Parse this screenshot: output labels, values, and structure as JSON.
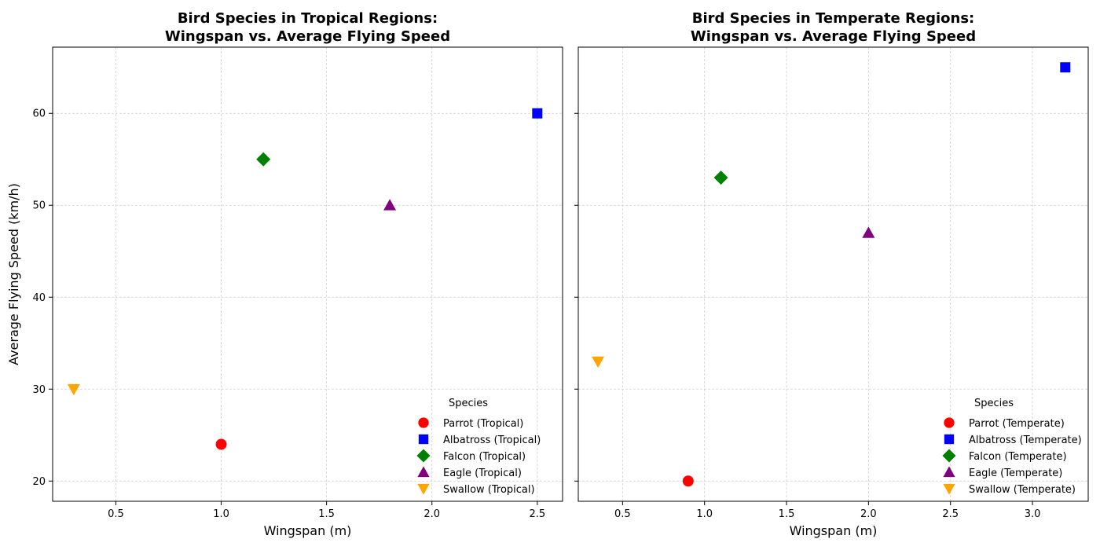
{
  "chart_data": [
    {
      "type": "scatter",
      "title": "Bird Species in Tropical Regions:\nWingspan vs. Average Flying Speed",
      "xlabel": "Wingspan (m)",
      "ylabel": "Average Flying Speed (km/h)",
      "xlim": [
        0.2,
        2.62
      ],
      "ylim": [
        17.8,
        67.2
      ],
      "xticks": [
        0.5,
        1.0,
        1.5,
        2.0,
        2.5
      ],
      "xtick_labels": [
        "0.5",
        "1.0",
        "1.5",
        "2.0",
        "2.5"
      ],
      "yticks": [
        20,
        30,
        40,
        50,
        60
      ],
      "ytick_labels": [
        "20",
        "30",
        "40",
        "50",
        "60"
      ],
      "grid": true,
      "legend": {
        "title": "Species",
        "placement": "lower-right"
      },
      "series": [
        {
          "name": "Parrot (Tropical)",
          "marker": "circle",
          "color": "#ff0000",
          "x": [
            1.0
          ],
          "y": [
            24
          ]
        },
        {
          "name": "Albatross (Tropical)",
          "marker": "square",
          "color": "#0000ff",
          "x": [
            2.5
          ],
          "y": [
            60
          ]
        },
        {
          "name": "Falcon (Tropical)",
          "marker": "diamond",
          "color": "#008000",
          "x": [
            1.2
          ],
          "y": [
            55
          ]
        },
        {
          "name": "Eagle (Tropical)",
          "marker": "triangle-up",
          "color": "#800080",
          "x": [
            1.8
          ],
          "y": [
            50
          ]
        },
        {
          "name": "Swallow (Tropical)",
          "marker": "triangle-down",
          "color": "#ffa500",
          "x": [
            0.3
          ],
          "y": [
            30
          ]
        }
      ]
    },
    {
      "type": "scatter",
      "title": "Bird Species in Temperate Regions:\nWingspan vs. Average Flying Speed",
      "xlabel": "Wingspan (m)",
      "ylabel": "",
      "xlim": [
        0.23,
        3.34
      ],
      "ylim": [
        17.8,
        67.2
      ],
      "xticks": [
        0.5,
        1.0,
        1.5,
        2.0,
        2.5,
        3.0
      ],
      "xtick_labels": [
        "0.5",
        "1.0",
        "1.5",
        "2.0",
        "2.5",
        "3.0"
      ],
      "yticks": [
        20,
        30,
        40,
        50,
        60
      ],
      "ytick_labels": [],
      "grid": true,
      "legend": {
        "title": "Species",
        "placement": "lower-right"
      },
      "series": [
        {
          "name": "Parrot (Temperate)",
          "marker": "circle",
          "color": "#ff0000",
          "x": [
            0.9
          ],
          "y": [
            20
          ]
        },
        {
          "name": "Albatross (Temperate)",
          "marker": "square",
          "color": "#0000ff",
          "x": [
            3.2
          ],
          "y": [
            65
          ]
        },
        {
          "name": "Falcon (Temperate)",
          "marker": "diamond",
          "color": "#008000",
          "x": [
            1.1
          ],
          "y": [
            53
          ]
        },
        {
          "name": "Eagle (Temperate)",
          "marker": "triangle-up",
          "color": "#800080",
          "x": [
            2.0
          ],
          "y": [
            47
          ]
        },
        {
          "name": "Swallow (Temperate)",
          "marker": "triangle-down",
          "color": "#ffa500",
          "x": [
            0.35
          ],
          "y": [
            33
          ]
        }
      ]
    }
  ]
}
